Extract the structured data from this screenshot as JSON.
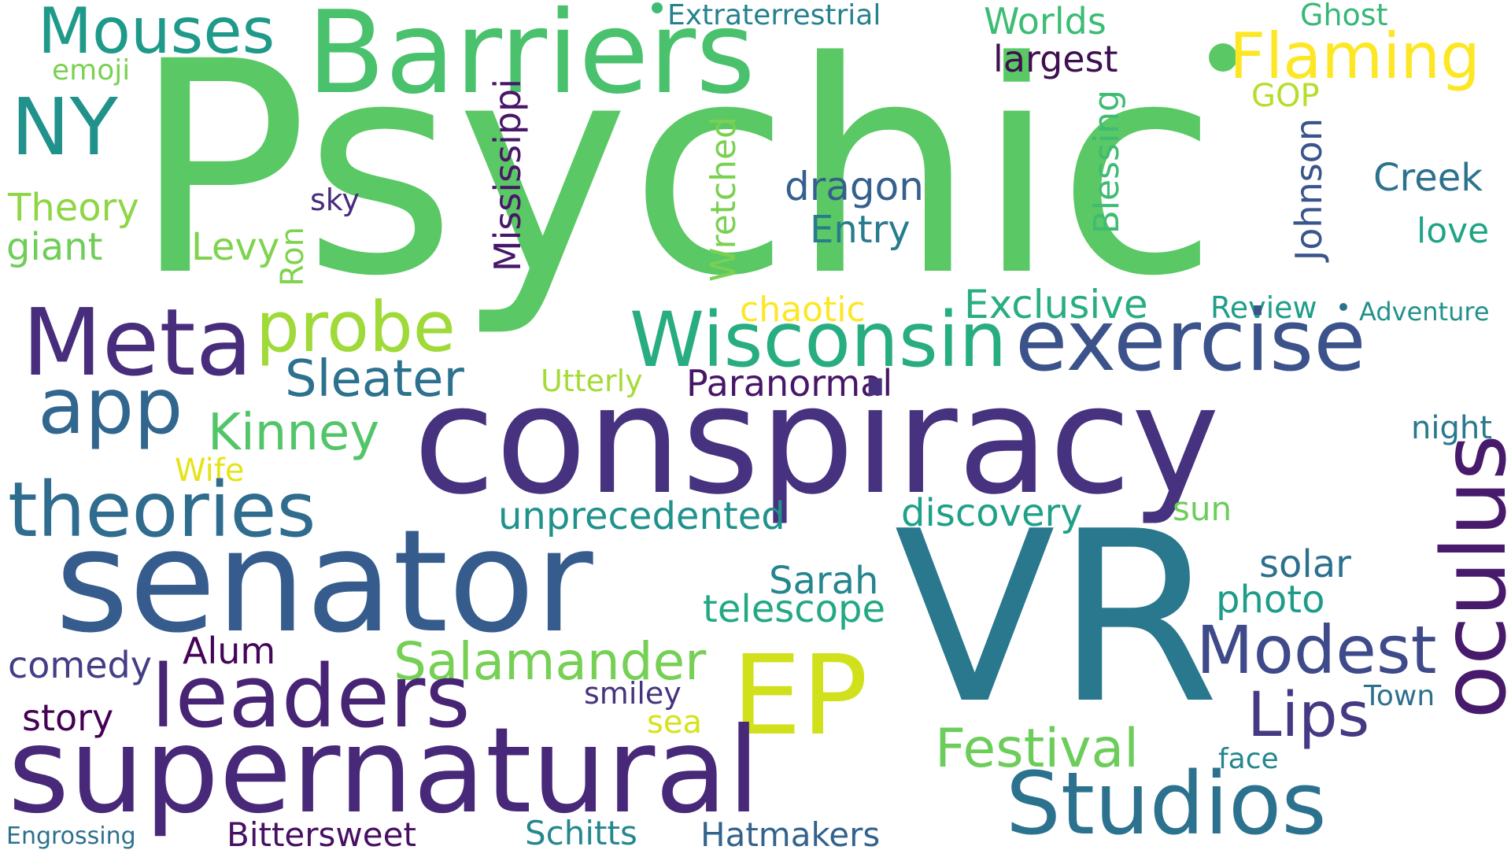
{
  "words": {
    "psychic": {
      "text": "Psychic",
      "color": "#5ac864"
    },
    "vr": {
      "text": "VR",
      "color": "#2a788e"
    },
    "conspiracy": {
      "text": "conspiracy",
      "color": "#46327e"
    },
    "senator": {
      "text": "senator",
      "color": "#365c8d"
    },
    "supernatural": {
      "text": "supernatural",
      "color": "#482878"
    },
    "barriers": {
      "text": "Barriers",
      "color": "#4ac16d"
    },
    "meta": {
      "text": "Meta",
      "color": "#472d7b"
    },
    "exercise": {
      "text": "exercise",
      "color": "#3b528b"
    },
    "wisconsin": {
      "text": "Wisconsin",
      "color": "#27ad81"
    },
    "ep": {
      "text": "EP",
      "color": "#d0e11c"
    },
    "oculus": {
      "text": "oculus",
      "color": "#481a6c"
    },
    "studios": {
      "text": "Studios",
      "color": "#2c728e"
    },
    "leaders": {
      "text": "leaders",
      "color": "#482475"
    },
    "theories": {
      "text": "theories",
      "color": "#2f6c8e"
    },
    "app": {
      "text": "app",
      "color": "#31668e"
    },
    "probe": {
      "text": "probe",
      "color": "#a0da39"
    },
    "modest": {
      "text": "Modest",
      "color": "#3e4a89"
    },
    "lips": {
      "text": "Lips",
      "color": "#443983"
    },
    "ny": {
      "text": "NY",
      "color": "#21918c"
    },
    "mouses": {
      "text": "Mouses",
      "color": "#1f9a8a"
    },
    "flaming": {
      "text": "Flaming",
      "color": "#fde725"
    },
    "festival": {
      "text": "Festival",
      "color": "#6ccd5a"
    },
    "salamander": {
      "text": "Salamander",
      "color": "#75d054"
    },
    "kinney": {
      "text": "Kinney",
      "color": "#52c569"
    },
    "sleater": {
      "text": "Sleater",
      "color": "#2c728e"
    },
    "dragon": {
      "text": "dragon",
      "color": "#355f8d"
    },
    "entry": {
      "text": "Entry",
      "color": "#287c8e"
    },
    "exclusive": {
      "text": "Exclusive",
      "color": "#28ae80"
    },
    "unprecedented": {
      "text": "unprecedented",
      "color": "#20928c"
    },
    "discovery": {
      "text": "discovery",
      "color": "#1fa088"
    },
    "telescope": {
      "text": "telescope",
      "color": "#22a884"
    },
    "sarah": {
      "text": "Sarah",
      "color": "#25858e"
    },
    "solar": {
      "text": "solar",
      "color": "#2d708e"
    },
    "photo": {
      "text": "photo",
      "color": "#1e9c89"
    },
    "creek": {
      "text": "Creek",
      "color": "#2c728e"
    },
    "theory": {
      "text": "Theory",
      "color": "#8ed645"
    },
    "giant": {
      "text": "giant",
      "color": "#6ece58"
    },
    "levy": {
      "text": "Levy",
      "color": "#7fd34e"
    },
    "comedy": {
      "text": "comedy",
      "color": "#433e85"
    },
    "story": {
      "text": "story",
      "color": "#440154"
    },
    "alum": {
      "text": "Alum",
      "color": "#450559"
    },
    "paranormal": {
      "text": "Paranormal",
      "color": "#481668"
    },
    "bittersweet": {
      "text": "Bittersweet",
      "color": "#471063"
    },
    "hatmakers": {
      "text": "Hatmakers",
      "color": "#33638d"
    },
    "schitts": {
      "text": "Schitts",
      "color": "#24878e"
    },
    "engrossing": {
      "text": "Engrossing",
      "color": "#2d708e"
    },
    "largest": {
      "text": "largest",
      "color": "#3f0f4f"
    },
    "worlds": {
      "text": "Worlds",
      "color": "#3dbc74"
    },
    "extraterrestrial": {
      "text": "Extraterrestrial",
      "color": "#26818e"
    },
    "ghost": {
      "text": "Ghost",
      "color": "#37b878"
    },
    "gop": {
      "text": "GOP",
      "color": "#b5de2b"
    },
    "love": {
      "text": "love",
      "color": "#20a486"
    },
    "night": {
      "text": "night",
      "color": "#2a788e"
    },
    "review": {
      "text": "Review",
      "color": "#1f9e89"
    },
    "adventure": {
      "text": "Adventure",
      "color": "#21918c"
    },
    "town": {
      "text": "Town",
      "color": "#2d708e"
    },
    "face": {
      "text": "face",
      "color": "#24868e"
    },
    "sun": {
      "text": "sun",
      "color": "#6ccd5a"
    },
    "sea": {
      "text": "sea",
      "color": "#d8e219"
    },
    "smiley": {
      "text": "smiley",
      "color": "#46337e"
    },
    "chaotic": {
      "text": "chaotic",
      "color": "#fde725"
    },
    "utterly": {
      "text": "Utterly",
      "color": "#a5db36"
    },
    "wife": {
      "text": "Wife",
      "color": "#e5e419"
    },
    "sky": {
      "text": "sky",
      "color": "#472c7a"
    },
    "emoji": {
      "text": "emoji",
      "color": "#7ad151"
    },
    "mississippi": {
      "text": "Mississippi",
      "color": "#481769"
    },
    "wretched": {
      "text": "Wretched",
      "color": "#7ad151"
    },
    "blessing": {
      "text": "Blessing",
      "color": "#3fbc73"
    },
    "johnson": {
      "text": "Johnson",
      "color": "#39558c"
    },
    "ron": {
      "text": "Ron",
      "color": "#7fd34e"
    }
  },
  "dots": {
    "a": {
      "color": "#3dbc74"
    },
    "b": {
      "color": "#5ac864"
    },
    "c": {
      "color": "#2c728e"
    }
  }
}
